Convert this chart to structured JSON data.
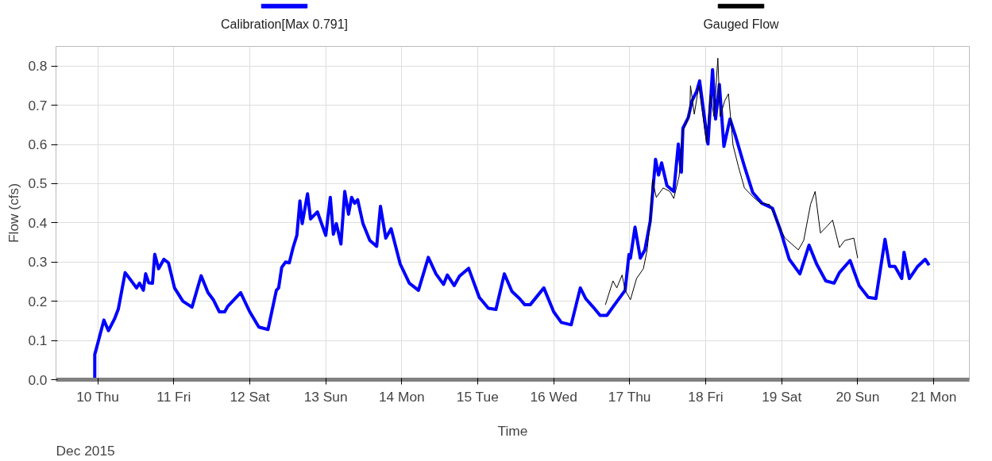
{
  "chart_data": {
    "type": "line",
    "xlabel": "Time",
    "ylabel": "Flow (cfs)",
    "annotations": [
      "Dec 2015"
    ],
    "xlim": [
      9.45,
      21.47
    ],
    "ylim": [
      0,
      0.85
    ],
    "xticks": [
      {
        "value": 10,
        "label": "10 Thu"
      },
      {
        "value": 11,
        "label": "11 Fri"
      },
      {
        "value": 12,
        "label": "12 Sat"
      },
      {
        "value": 13,
        "label": "13 Sun"
      },
      {
        "value": 14,
        "label": "14 Mon"
      },
      {
        "value": 15,
        "label": "15 Tue"
      },
      {
        "value": 16,
        "label": "16 Wed"
      },
      {
        "value": 17,
        "label": "17 Thu"
      },
      {
        "value": 18,
        "label": "18 Fri"
      },
      {
        "value": 19,
        "label": "19 Sat"
      },
      {
        "value": 20,
        "label": "20 Sun"
      },
      {
        "value": 21,
        "label": "21 Mon"
      }
    ],
    "yticks": [
      {
        "value": 0,
        "label": "0.0"
      },
      0.1,
      0.2,
      0.3,
      0.4,
      0.5,
      0.6,
      0.7,
      0.8
    ],
    "grid": true,
    "legend": "top",
    "marker": "none",
    "line_style": "solid",
    "series": [
      {
        "name": "Calibration[Max 0.791]",
        "color": "#0000ff",
        "x": [
          9.91,
          9.96,
          9.96,
          10.01,
          10.08,
          10.14,
          10.22,
          10.27,
          10.36,
          10.43,
          10.51,
          10.55,
          10.6,
          10.63,
          10.67,
          10.72,
          10.75,
          10.8,
          10.87,
          10.93,
          11.01,
          11.12,
          11.24,
          11.36,
          11.45,
          11.52,
          11.6,
          11.67,
          11.71,
          11.88,
          12.0,
          12.12,
          12.24,
          12.35,
          12.38,
          12.42,
          12.47,
          12.52,
          12.57,
          12.62,
          12.66,
          12.69,
          12.76,
          12.8,
          12.89,
          13.0,
          13.06,
          13.1,
          13.14,
          13.2,
          13.25,
          13.3,
          13.34,
          13.38,
          13.42,
          13.49,
          13.58,
          13.67,
          13.72,
          13.79,
          13.86,
          13.98,
          14.1,
          14.22,
          14.35,
          14.45,
          14.55,
          14.6,
          14.69,
          14.76,
          14.88,
          15.02,
          15.14,
          15.24,
          15.35,
          15.45,
          15.55,
          15.62,
          15.69,
          15.87,
          16.0,
          16.1,
          16.23,
          16.35,
          16.42,
          16.52,
          16.61,
          16.7,
          16.8,
          16.94,
          16.99,
          17.01,
          17.07,
          17.14,
          17.2,
          17.27,
          17.34,
          17.38,
          17.42,
          17.49,
          17.58,
          17.64,
          17.68,
          17.7,
          17.77,
          17.82,
          17.88,
          17.92,
          18.03,
          18.09,
          18.13,
          18.18,
          18.24,
          18.32,
          18.39,
          18.51,
          18.62,
          18.74,
          18.88,
          18.98,
          19.1,
          19.24,
          19.36,
          19.46,
          19.58,
          19.69,
          19.76,
          19.9,
          20.02,
          20.14,
          20.24,
          20.36,
          20.42,
          20.49,
          20.58,
          20.61,
          20.68,
          20.79,
          20.89,
          20.94
        ],
        "values": [
          0.0,
          0.0,
          0.064,
          0.1,
          0.152,
          0.125,
          0.155,
          0.18,
          0.273,
          0.255,
          0.234,
          0.246,
          0.228,
          0.27,
          0.247,
          0.246,
          0.32,
          0.283,
          0.307,
          0.298,
          0.234,
          0.2,
          0.185,
          0.265,
          0.222,
          0.204,
          0.173,
          0.173,
          0.187,
          0.222,
          0.173,
          0.134,
          0.128,
          0.228,
          0.234,
          0.286,
          0.3,
          0.298,
          0.337,
          0.368,
          0.456,
          0.398,
          0.474,
          0.41,
          0.428,
          0.368,
          0.465,
          0.371,
          0.398,
          0.346,
          0.48,
          0.422,
          0.465,
          0.45,
          0.459,
          0.398,
          0.355,
          0.34,
          0.442,
          0.361,
          0.385,
          0.295,
          0.246,
          0.228,
          0.312,
          0.27,
          0.243,
          0.267,
          0.24,
          0.264,
          0.284,
          0.21,
          0.182,
          0.179,
          0.27,
          0.225,
          0.207,
          0.191,
          0.191,
          0.234,
          0.173,
          0.146,
          0.14,
          0.234,
          0.207,
          0.185,
          0.164,
          0.164,
          0.191,
          0.228,
          0.319,
          0.31,
          0.389,
          0.31,
          0.331,
          0.404,
          0.562,
          0.522,
          0.553,
          0.495,
          0.48,
          0.601,
          0.529,
          0.641,
          0.668,
          0.711,
          0.735,
          0.762,
          0.601,
          0.791,
          0.665,
          0.753,
          0.595,
          0.665,
          0.623,
          0.544,
          0.477,
          0.45,
          0.437,
          0.383,
          0.307,
          0.27,
          0.343,
          0.295,
          0.252,
          0.246,
          0.273,
          0.304,
          0.24,
          0.21,
          0.207,
          0.358,
          0.289,
          0.289,
          0.258,
          0.325,
          0.258,
          0.289,
          0.307,
          0.292
        ]
      },
      {
        "name": "Gauged Flow",
        "color": "#000000",
        "x": [
          16.68,
          16.78,
          16.83,
          16.9,
          16.94,
          17.01,
          17.09,
          17.18,
          17.23,
          17.27,
          17.3,
          17.35,
          17.44,
          17.53,
          17.58,
          17.65,
          17.7,
          17.79,
          17.8,
          17.85,
          17.91,
          18.01,
          18.06,
          18.11,
          18.16,
          18.19,
          18.25,
          18.3,
          18.36,
          18.43,
          18.51,
          18.63,
          18.72,
          18.84,
          18.94,
          19.04,
          19.22,
          19.29,
          19.38,
          19.44,
          19.51,
          19.6,
          19.67,
          19.76,
          19.83,
          19.95,
          20.0
        ],
        "values": [
          0.191,
          0.252,
          0.234,
          0.267,
          0.228,
          0.204,
          0.258,
          0.283,
          0.331,
          0.404,
          0.51,
          0.465,
          0.489,
          0.48,
          0.462,
          0.519,
          0.635,
          0.677,
          0.75,
          0.677,
          0.75,
          0.604,
          0.726,
          0.671,
          0.82,
          0.671,
          0.711,
          0.729,
          0.598,
          0.544,
          0.489,
          0.465,
          0.45,
          0.447,
          0.404,
          0.362,
          0.331,
          0.355,
          0.447,
          0.48,
          0.374,
          0.392,
          0.407,
          0.337,
          0.355,
          0.361,
          0.31
        ]
      }
    ]
  }
}
